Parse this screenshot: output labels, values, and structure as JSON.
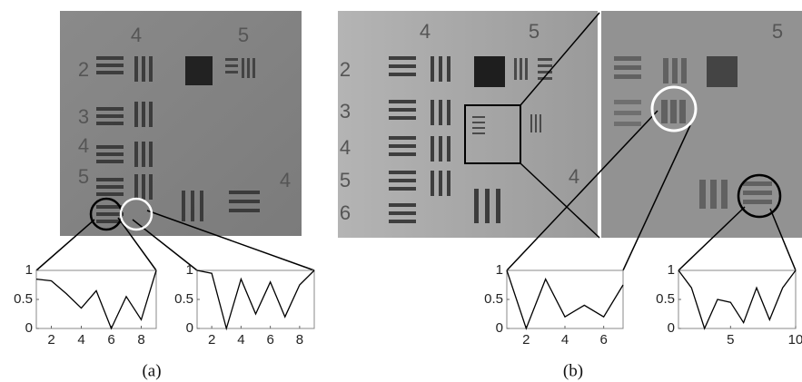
{
  "figure": {
    "panels": [
      {
        "caption": "(a)",
        "image_labels": [
          "4",
          "5",
          "2",
          "3",
          "4",
          "5",
          "4"
        ]
      },
      {
        "caption": "(b)",
        "image_labels": [
          "4",
          "5",
          "2",
          "3",
          "4",
          "5",
          "6",
          "4",
          "5"
        ]
      }
    ]
  },
  "chart_data": [
    {
      "type": "line",
      "x": [
        1,
        2,
        3,
        4,
        5,
        6,
        7,
        8,
        9
      ],
      "values": [
        0.85,
        0.82,
        0.6,
        0.35,
        0.65,
        0,
        0.55,
        0.15,
        1
      ],
      "color": "#000000",
      "xlim": [
        1,
        9
      ],
      "ylim": [
        0,
        1
      ],
      "xticks": [
        2,
        4,
        6,
        8
      ],
      "yticks": [
        0,
        0.5,
        1
      ]
    },
    {
      "type": "line",
      "x": [
        1,
        2,
        3,
        4,
        5,
        6,
        7,
        8,
        9
      ],
      "values": [
        1,
        0.95,
        0,
        0.85,
        0.25,
        0.8,
        0.2,
        0.75,
        1
      ],
      "color": "#000000",
      "xlim": [
        1,
        9
      ],
      "ylim": [
        0,
        1
      ],
      "xticks": [
        2,
        4,
        6,
        8
      ],
      "yticks": [
        0,
        0.5,
        1
      ]
    },
    {
      "type": "line",
      "x": [
        1,
        2,
        3,
        4,
        5,
        6,
        7
      ],
      "values": [
        1,
        0,
        0.85,
        0.2,
        0.4,
        0.2,
        0.75
      ],
      "color": "#000000",
      "xlim": [
        1,
        7
      ],
      "ylim": [
        0,
        1
      ],
      "xticks": [
        2,
        4,
        6
      ],
      "yticks": [
        0,
        0.5,
        1
      ]
    },
    {
      "type": "line",
      "x": [
        1,
        2,
        3,
        4,
        5,
        6,
        7,
        8,
        9,
        10
      ],
      "values": [
        1,
        0.7,
        0,
        0.5,
        0.45,
        0.1,
        0.7,
        0.15,
        0.7,
        1
      ],
      "color": "#000000",
      "xlim": [
        1,
        10
      ],
      "ylim": [
        0,
        1
      ],
      "xticks": [
        5,
        10
      ],
      "yticks": [
        0,
        0.5,
        1
      ]
    }
  ]
}
